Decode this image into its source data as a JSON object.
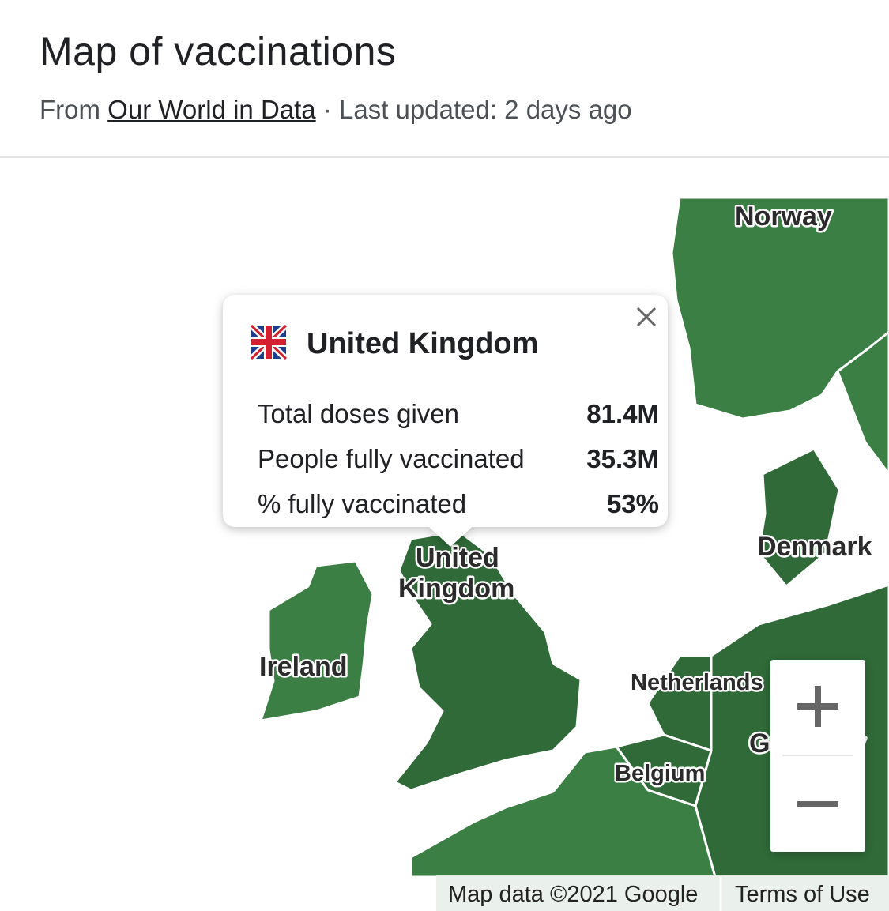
{
  "header": {
    "title": "Map of vaccinations",
    "source_prefix": "From",
    "source_link": "Our World in Data",
    "separator": "·",
    "updated": "Last updated: 2 days ago"
  },
  "tooltip": {
    "country": "United Kingdom",
    "rows": [
      {
        "label": "Total doses given",
        "value": "81.4M"
      },
      {
        "label": "People fully vaccinated",
        "value": "35.3M"
      },
      {
        "label": "% fully vaccinated",
        "value": "53%"
      }
    ]
  },
  "map_labels": [
    {
      "text": "Norway"
    },
    {
      "text": "Denmark"
    },
    {
      "text": "United"
    },
    {
      "text": "Kingdom"
    },
    {
      "text": "Ireland"
    },
    {
      "text": "Netherlands"
    },
    {
      "text": "Belgium"
    },
    {
      "text": "Germany"
    }
  ],
  "footer": {
    "attribution": "Map data ©2021 Google",
    "terms": "Terms of Use"
  }
}
